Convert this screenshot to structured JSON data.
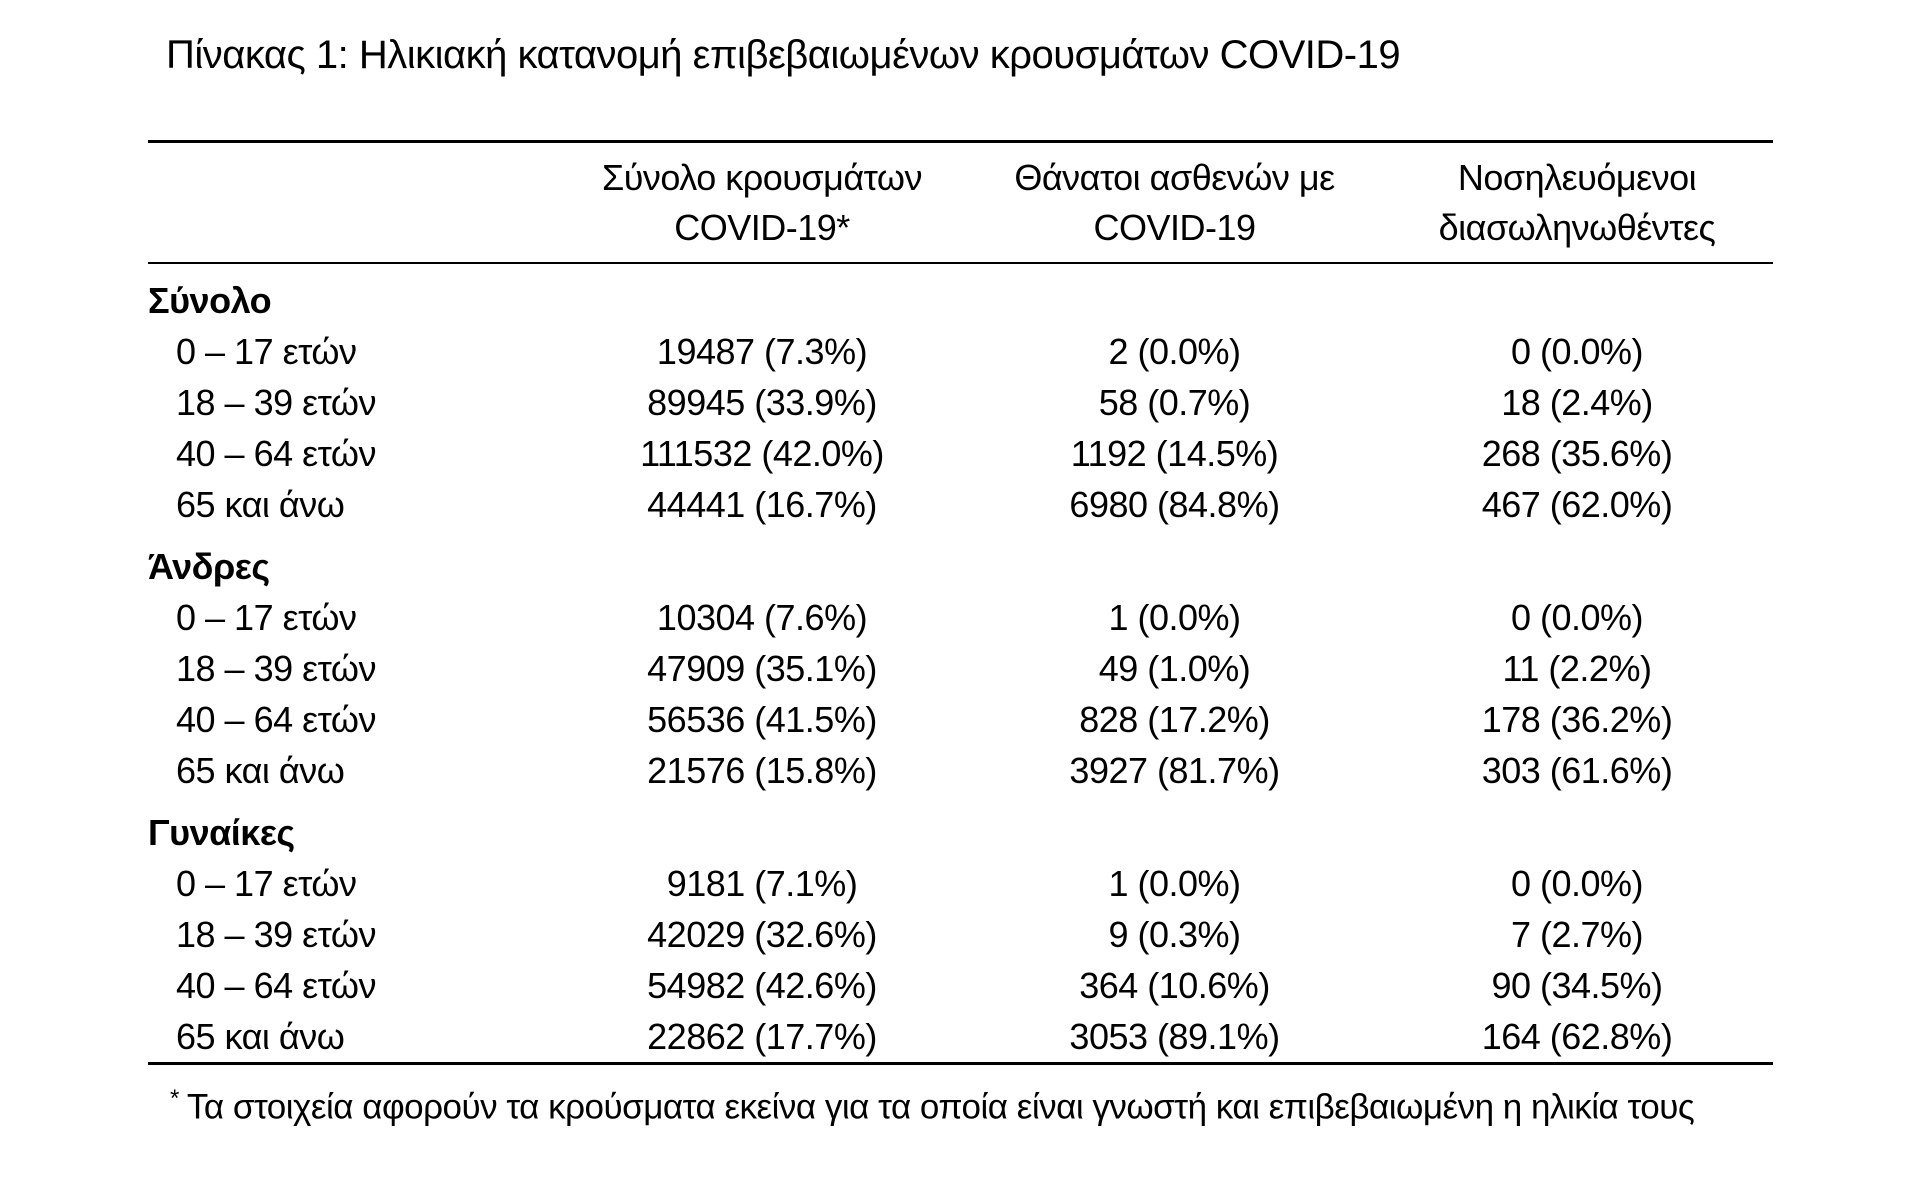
{
  "title": "Πίνακας 1: Ηλικιακή κατανομή επιβεβαιωμένων κρουσμάτων COVID-19",
  "table": {
    "columns": [
      {
        "line1": "Σύνολο κρουσμάτων",
        "line2": "COVID-19*"
      },
      {
        "line1": "Θάνατοι ασθενών με",
        "line2": "COVID-19"
      },
      {
        "line1": "Νοσηλευόμενοι",
        "line2": "διασωληνωθέντες"
      }
    ],
    "sections": [
      {
        "label": "Σύνολο",
        "rows": [
          {
            "age": "0 – 17 ετών",
            "cases": "19487 (7.3%)",
            "deaths": "2 (0.0%)",
            "intubated": "0 (0.0%)"
          },
          {
            "age": "18 – 39 ετών",
            "cases": "89945 (33.9%)",
            "deaths": "58 (0.7%)",
            "intubated": "18 (2.4%)"
          },
          {
            "age": "40 – 64 ετών",
            "cases": "111532 (42.0%)",
            "deaths": "1192 (14.5%)",
            "intubated": "268 (35.6%)"
          },
          {
            "age": "65 και άνω",
            "cases": "44441 (16.7%)",
            "deaths": "6980 (84.8%)",
            "intubated": "467 (62.0%)"
          }
        ]
      },
      {
        "label": "Άνδρες",
        "rows": [
          {
            "age": "0 – 17 ετών",
            "cases": "10304 (7.6%)",
            "deaths": "1 (0.0%)",
            "intubated": "0 (0.0%)"
          },
          {
            "age": "18 – 39 ετών",
            "cases": "47909 (35.1%)",
            "deaths": "49 (1.0%)",
            "intubated": "11 (2.2%)"
          },
          {
            "age": "40 – 64 ετών",
            "cases": "56536 (41.5%)",
            "deaths": "828 (17.2%)",
            "intubated": "178 (36.2%)"
          },
          {
            "age": "65 και άνω",
            "cases": "21576 (15.8%)",
            "deaths": "3927 (81.7%)",
            "intubated": "303 (61.6%)"
          }
        ]
      },
      {
        "label": "Γυναίκες",
        "rows": [
          {
            "age": "0 – 17 ετών",
            "cases": "9181 (7.1%)",
            "deaths": "1 (0.0%)",
            "intubated": "0 (0.0%)"
          },
          {
            "age": "18 – 39 ετών",
            "cases": "42029 (32.6%)",
            "deaths": "9 (0.3%)",
            "intubated": "7 (2.7%)"
          },
          {
            "age": "40 – 64 ετών",
            "cases": "54982 (42.6%)",
            "deaths": "364 (10.6%)",
            "intubated": "90 (34.5%)"
          },
          {
            "age": "65 και άνω",
            "cases": "22862 (17.7%)",
            "deaths": "3053 (89.1%)",
            "intubated": "164 (62.8%)"
          }
        ]
      }
    ]
  },
  "footnote": {
    "marker": "*",
    "text": "Τα στοιχεία αφορούν τα κρούσματα εκείνα για τα οποία είναι γνωστή και επιβεβαιωμένη η ηλικία τους"
  },
  "colors": {
    "text": "#000000",
    "background": "#ffffff",
    "rule": "#000000"
  }
}
